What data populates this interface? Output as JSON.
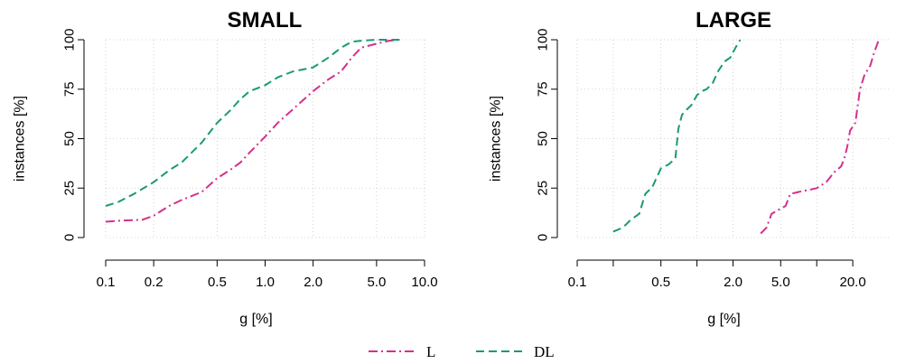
{
  "colors": {
    "L": "#d62f8c",
    "DL": "#1a9a72"
  },
  "legend": [
    {
      "key": "L",
      "label": "L"
    },
    {
      "key": "DL",
      "label": "DL"
    }
  ],
  "chart_data": [
    {
      "type": "line",
      "title": "SMALL",
      "xlabel": "g [%]",
      "ylabel": "instances [%]",
      "x_scale": "log",
      "xlim": [
        0.1,
        10.0
      ],
      "ylim": [
        0,
        100
      ],
      "xticks": [
        0.1,
        0.2,
        0.5,
        1.0,
        2.0,
        5.0,
        10.0
      ],
      "xtick_labels": [
        "0.1",
        "0.2",
        "0.5",
        "1.0",
        "2.0",
        "5.0",
        "10.0"
      ],
      "yticks": [
        0,
        25,
        50,
        75,
        100
      ],
      "ytick_labels": [
        "0",
        "25",
        "50",
        "75",
        "100"
      ],
      "grid": true,
      "series": [
        {
          "name": "L",
          "x": [
            0.1,
            0.12,
            0.17,
            0.2,
            0.25,
            0.3,
            0.4,
            0.5,
            0.6,
            0.7,
            0.8,
            1.0,
            1.2,
            1.5,
            2.0,
            2.5,
            3.0,
            3.5,
            4.0,
            5.0,
            6.0,
            7.0
          ],
          "y": [
            8,
            8.5,
            9,
            11,
            16,
            19,
            23,
            30,
            34,
            38,
            43,
            51,
            58,
            65,
            74,
            80,
            84,
            91,
            96,
            98,
            99.5,
            100
          ]
        },
        {
          "name": "DL",
          "x": [
            0.1,
            0.12,
            0.15,
            0.2,
            0.25,
            0.3,
            0.4,
            0.5,
            0.6,
            0.7,
            0.8,
            1.0,
            1.2,
            1.5,
            2.0,
            2.5,
            3.0,
            3.5,
            4.0,
            5.0,
            6.0,
            7.0
          ],
          "y": [
            16,
            18,
            22,
            28,
            34,
            38,
            48,
            58,
            64,
            70,
            74,
            77,
            81,
            84,
            86,
            91,
            96,
            99,
            99.5,
            100,
            100,
            100
          ]
        }
      ]
    },
    {
      "type": "line",
      "title": "LARGE",
      "xlabel": "g [%]",
      "ylabel": "instances [%]",
      "x_scale": "log",
      "xlim": [
        0.1,
        40.0
      ],
      "ylim": [
        0,
        100
      ],
      "xticks": [
        0.1,
        0.2,
        0.5,
        1.0,
        2.0,
        5.0,
        10.0,
        20.0
      ],
      "xtick_labels": [
        "0.1",
        "",
        "0.5",
        "",
        "2.0",
        "5.0",
        "",
        "20.0"
      ],
      "yticks": [
        0,
        25,
        50,
        75,
        100
      ],
      "ytick_labels": [
        "0",
        "25",
        "50",
        "75",
        "100"
      ],
      "grid": true,
      "series": [
        {
          "name": "L",
          "x": [
            3.4,
            3.8,
            4.2,
            4.8,
            5.5,
            6.0,
            7.0,
            8.5,
            10.0,
            12.0,
            14.0,
            16.0,
            17.0,
            18.0,
            19.0,
            21.0,
            23.0,
            25.0,
            28.0,
            30.0,
            33.0
          ],
          "y": [
            2,
            5,
            12,
            14,
            16,
            22,
            23,
            24,
            25,
            28,
            33,
            36,
            40,
            46,
            54,
            58,
            75,
            82,
            87,
            93,
            100
          ]
        },
        {
          "name": "DL",
          "x": [
            0.2,
            0.24,
            0.28,
            0.33,
            0.37,
            0.4,
            0.42,
            0.5,
            0.58,
            0.66,
            0.7,
            0.75,
            0.8,
            0.9,
            1.0,
            1.1,
            1.2,
            1.35,
            1.5,
            1.7,
            1.9,
            2.1,
            2.3
          ],
          "y": [
            3,
            5,
            9,
            12,
            22,
            24,
            25,
            35,
            37,
            40,
            55,
            62,
            64,
            67,
            72,
            74,
            75,
            78,
            84,
            89,
            91,
            96,
            100
          ]
        }
      ]
    }
  ]
}
